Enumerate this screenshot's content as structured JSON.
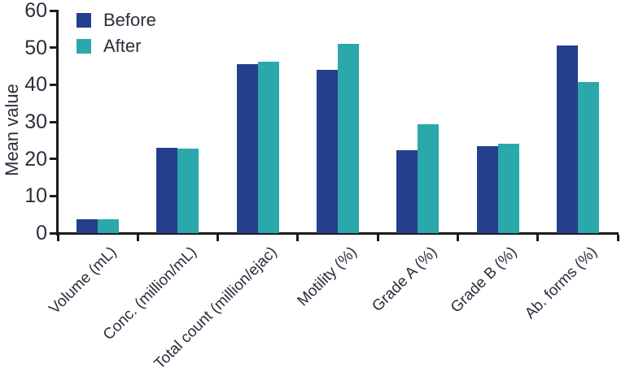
{
  "chart_data": {
    "type": "bar",
    "title": "",
    "xlabel": "",
    "ylabel": "Mean value",
    "ylim": [
      0,
      60
    ],
    "yticks": [
      0,
      10,
      20,
      30,
      40,
      50,
      60
    ],
    "grid": false,
    "legend_position": "top-left",
    "categories": [
      "Volume (mL)",
      "Conc. (million/mL)",
      "Total count (million/ejac)",
      "Motility (%)",
      "Grade A (%)",
      "Grade B (%)",
      "Ab. forms (%)"
    ],
    "series": [
      {
        "name": "Before",
        "color": "#253f8c",
        "values": [
          3.8,
          23.0,
          45.5,
          44.0,
          22.3,
          23.4,
          50.5
        ]
      },
      {
        "name": "After",
        "color": "#2aa8ab",
        "values": [
          3.8,
          22.7,
          46.3,
          51.0,
          29.3,
          24.0,
          40.7
        ]
      }
    ],
    "colors": {
      "axis": "#1b1b1b",
      "text": "#2d2d3c",
      "background": "#ffffff"
    }
  }
}
